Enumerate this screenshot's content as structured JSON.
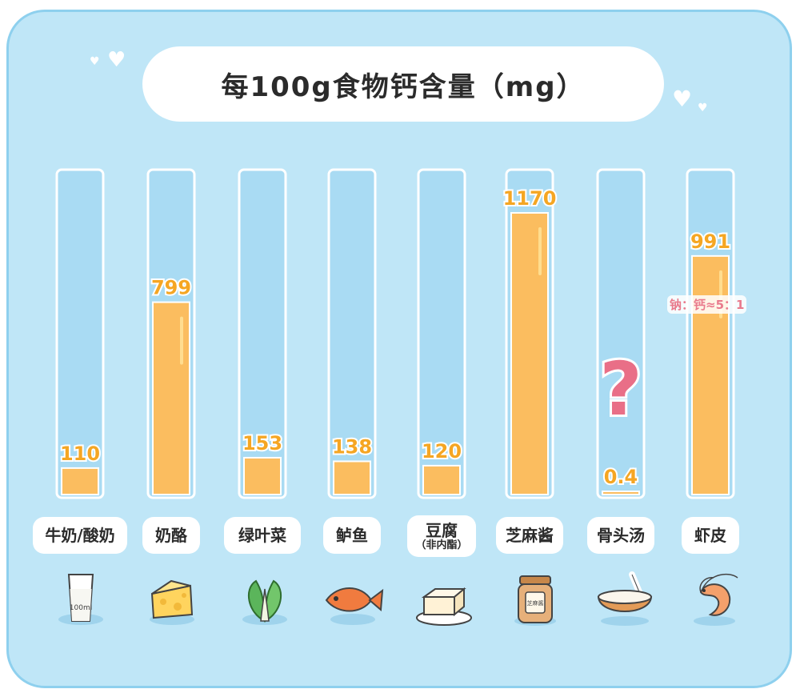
{
  "title": "每100g食物钙含量（mg）",
  "colors": {
    "background": "#bfe6f7",
    "track": "#a9dbf3",
    "bar": "#fbbd5f",
    "value_text": "#f5a623",
    "question_mark": "#e96f87",
    "annotation": "#e97a8c"
  },
  "chart_data": {
    "type": "bar",
    "title": "每100g食物钙含量（mg）",
    "categories": [
      "牛奶/酸奶",
      "奶酪",
      "绿叶菜",
      "鲈鱼",
      "豆腐",
      "芝麻酱",
      "骨头汤",
      "虾皮"
    ],
    "category_sublabels": [
      "",
      "",
      "",
      "",
      "（非内酯）",
      "",
      "",
      ""
    ],
    "values": [
      110,
      799,
      153,
      138,
      120,
      1170,
      0.4,
      991
    ],
    "value_labels": [
      "110",
      "799",
      "153",
      "138",
      "120",
      "1170",
      "0.4",
      "991"
    ],
    "ylim": [
      0,
      1170
    ],
    "grid": false,
    "legend": "none",
    "annotations": [
      {
        "category": "骨头汤",
        "text": "?"
      },
      {
        "category": "虾皮",
        "text": "钠：钙≈5：1"
      }
    ]
  },
  "food_icons": [
    "milk-glass-icon",
    "cheese-icon",
    "leafy-greens-icon",
    "fish-icon",
    "tofu-icon",
    "sesame-paste-jar-icon",
    "bone-soup-bowl-icon",
    "dried-shrimp-icon"
  ],
  "icon_texts": {
    "milk_glass": "100ml",
    "sesame_jar": "芝麻酱"
  }
}
